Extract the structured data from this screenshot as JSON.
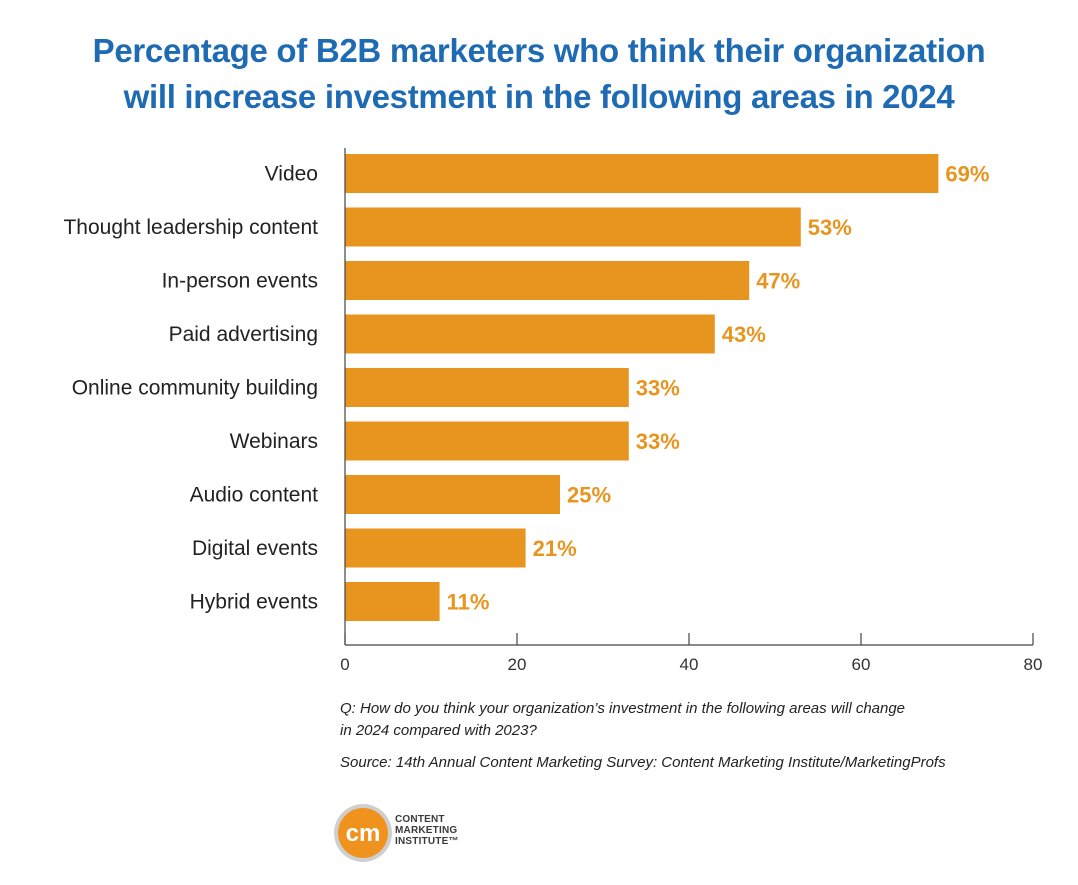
{
  "title": {
    "line1": "Percentage of B2B marketers who think their organization",
    "line2": "will increase investment in the following areas in 2024"
  },
  "chart_data": {
    "type": "bar",
    "orientation": "horizontal",
    "categories": [
      "Video",
      "Thought leadership content",
      "In-person events",
      "Paid advertising",
      "Online community building",
      "Webinars",
      "Audio content",
      "Digital events",
      "Hybrid events"
    ],
    "values": [
      69,
      53,
      47,
      43,
      33,
      33,
      25,
      21,
      11
    ],
    "value_labels": [
      "69%",
      "53%",
      "47%",
      "43%",
      "33%",
      "33%",
      "25%",
      "21%",
      "11%"
    ],
    "xlim": [
      0,
      80
    ],
    "xticks": [
      0,
      20,
      40,
      60,
      80
    ],
    "bar_color": "#e8951f",
    "grid": false,
    "legend": "none"
  },
  "notes": {
    "question_line1": "Q: How do you think your organization’s investment in the following areas will change",
    "question_line2": "in 2024 compared with 2023?",
    "source": "Source: 14th Annual Content Marketing Survey: Content Marketing Institute/MarketingProfs"
  },
  "logo": {
    "mark": "cm",
    "line1": "CONTENT",
    "line2": "MARKETING",
    "line3": "INSTITUTE™",
    "color": "#f0921e"
  }
}
